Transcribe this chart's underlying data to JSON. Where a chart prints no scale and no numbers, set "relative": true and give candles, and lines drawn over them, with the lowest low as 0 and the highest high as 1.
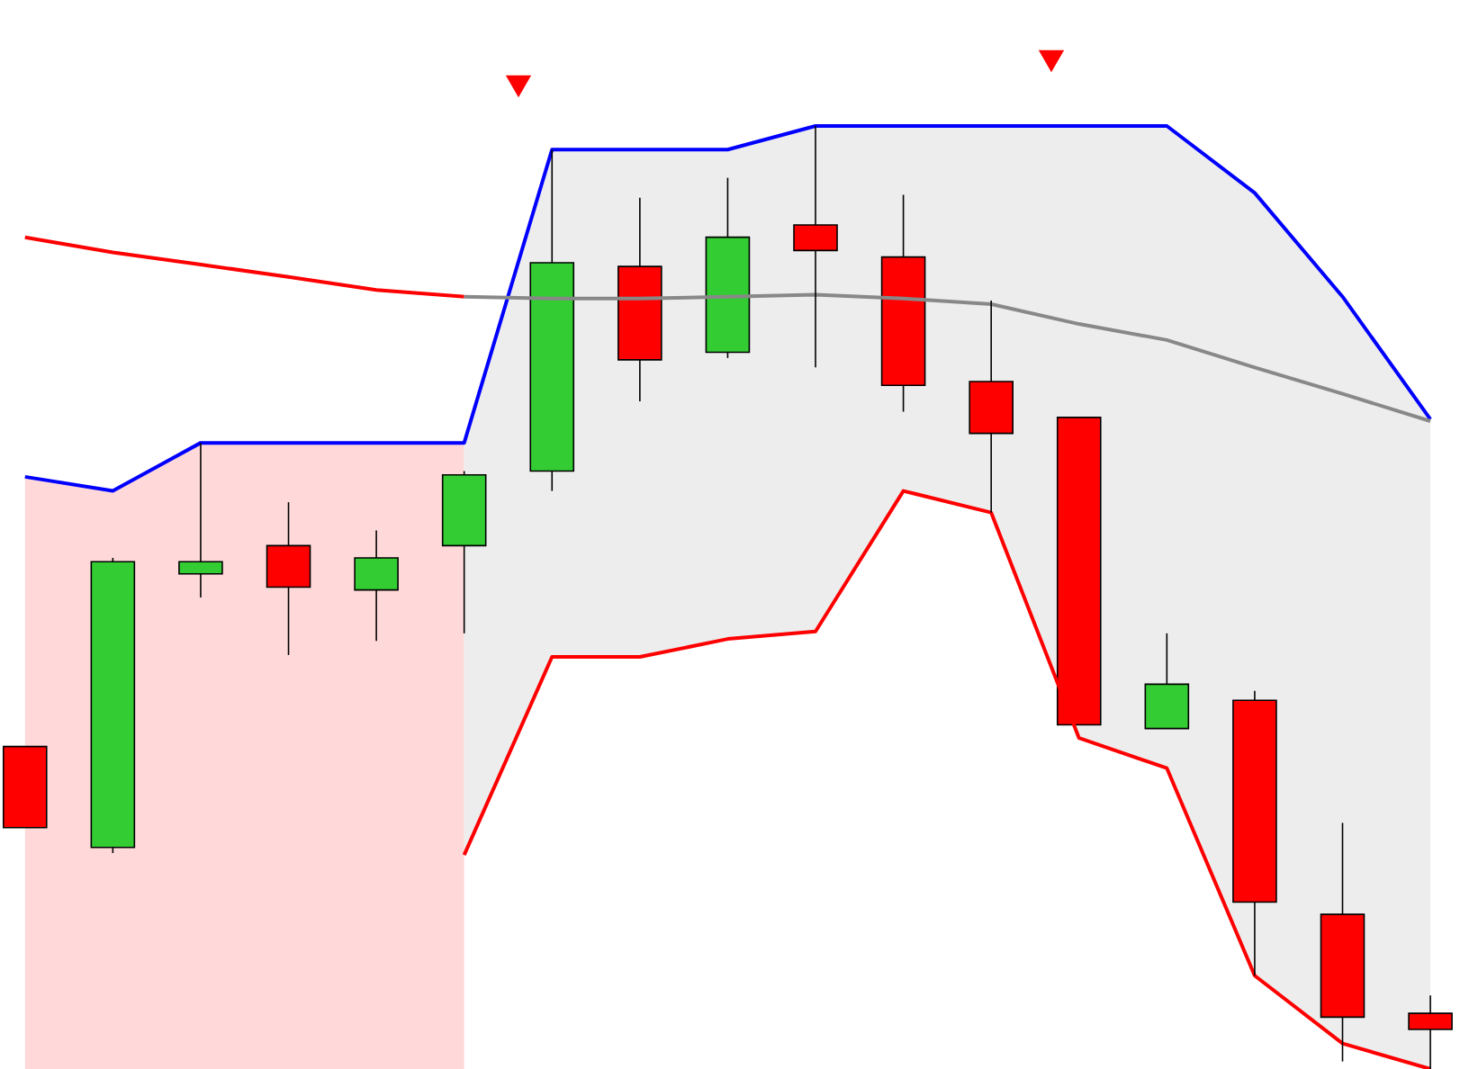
{
  "chart_data": {
    "type": "candlestick",
    "relative": true,
    "categories": [
      null,
      null,
      null,
      null,
      null,
      null,
      null,
      null,
      null,
      null,
      null,
      null,
      null,
      null,
      null,
      null,
      null
    ],
    "ohlc": [
      [
        0.342,
        0.342,
        0.256,
        0.256
      ],
      [
        0.235,
        0.542,
        0.229,
        0.538
      ],
      [
        0.525,
        0.664,
        0.5,
        0.538
      ],
      [
        0.555,
        0.601,
        0.439,
        0.511
      ],
      [
        0.508,
        0.571,
        0.454,
        0.542
      ],
      [
        0.555,
        0.634,
        0.462,
        0.63
      ],
      [
        0.634,
        0.975,
        0.613,
        0.855
      ],
      [
        0.851,
        0.924,
        0.708,
        0.752
      ],
      [
        0.76,
        0.945,
        0.754,
        0.882
      ],
      [
        0.895,
        1.0,
        0.744,
        0.868
      ],
      [
        0.861,
        0.927,
        0.697,
        0.725
      ],
      [
        0.729,
        0.815,
        0.59,
        0.674
      ],
      [
        0.691,
        0.691,
        0.365,
        0.365
      ],
      [
        0.361,
        0.462,
        0.361,
        0.408
      ],
      [
        0.391,
        0.401,
        0.099,
        0.177
      ],
      [
        0.164,
        0.261,
        0.008,
        0.055
      ],
      [
        0.059,
        0.078,
        0.0,
        0.042
      ]
    ],
    "colors": [
      "#ff0000",
      "#33cc33",
      "#33cc33",
      "#ff0000",
      "#33cc33",
      "#33cc33",
      "#33cc33",
      "#ff0000",
      "#33cc33",
      "#ff0000",
      "#ff0000",
      "#ff0000",
      "#ff0000",
      "#33cc33",
      "#ff0000",
      "#ff0000",
      "#ff0000"
    ],
    "series": [
      {
        "type": "line",
        "color": "#0000ff",
        "values": [
          0.628,
          0.613,
          0.664,
          0.664,
          0.664,
          0.664,
          0.975,
          0.975,
          0.975,
          1.0,
          1.0,
          1.0,
          1.0,
          1.0,
          0.929,
          0.819,
          0.689
        ]
      },
      {
        "type": "line",
        "color": "#ff0000",
        "values": [
          null,
          null,
          null,
          null,
          null,
          0.227,
          0.437,
          0.437,
          0.456,
          0.464,
          0.613,
          0.59,
          0.351,
          0.319,
          0.099,
          0.027,
          0.0
        ]
      },
      {
        "type": "line",
        "color": "#ff0000",
        "values": [
          0.882,
          0.866,
          0.853,
          0.84,
          0.826,
          0.819,
          null,
          null,
          null,
          null,
          null,
          null,
          null,
          null,
          null,
          null,
          null
        ],
        "lower": [
          0,
          0,
          0,
          0,
          0,
          0,
          null,
          null,
          null,
          null,
          null,
          null,
          null,
          null,
          null,
          null,
          null
        ],
        "upper": [
          0.628,
          0.613,
          0.664,
          0.664,
          0.664,
          0.664,
          null,
          null,
          null,
          null,
          null,
          null,
          null,
          null,
          null,
          null,
          null
        ]
      },
      {
        "type": "line",
        "color": "#888888",
        "values": [
          null,
          null,
          null,
          null,
          null,
          0.819,
          0.817,
          0.817,
          0.819,
          0.821,
          0.817,
          0.811,
          0.79,
          0.773,
          0.744,
          0.716,
          0.687
        ],
        "lower": [
          null,
          null,
          null,
          null,
          null,
          0.227,
          0.437,
          0.437,
          0.456,
          0.464,
          0.613,
          0.59,
          0.351,
          0.319,
          0.099,
          0.027,
          0.0
        ],
        "upper": [
          null,
          null,
          null,
          null,
          null,
          0.664,
          0.975,
          0.975,
          0.975,
          1.0,
          1.0,
          1.0,
          1.0,
          1.0,
          0.929,
          0.819,
          0.689
        ]
      }
    ]
  }
}
